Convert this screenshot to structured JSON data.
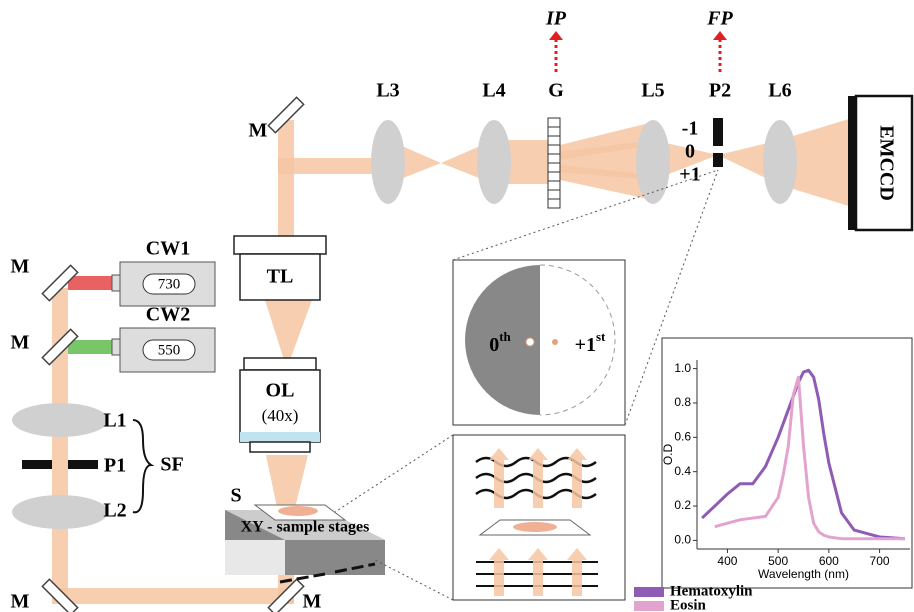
{
  "labels": {
    "ip": "IP",
    "fp": "FP",
    "l3": "L3",
    "l4": "L4",
    "g": "G",
    "l5": "L5",
    "p2": "P2",
    "l6": "L6",
    "emccd": "EMCCD",
    "minus1": "-1",
    "zero": "0",
    "plus1": "+1",
    "cw1": "CW1",
    "cw1_wl": "730",
    "cw2": "CW2",
    "cw2_wl": "550",
    "tl": "TL",
    "ol": "OL",
    "ol_mag": "(40x)",
    "s": "S",
    "stage": "XY - sample stages",
    "l1": "L1",
    "p1": "P1",
    "l2": "L2",
    "sf": "SF",
    "order0": {
      "base": "0",
      "sup": "th"
    },
    "order1": {
      "base": "+1",
      "sup": "st"
    },
    "mirrors": [
      "M",
      "M",
      "M",
      "M",
      "M"
    ]
  },
  "chart_data": {
    "type": "line",
    "x_label": "Wavelength (nm)",
    "y_label": "O.D",
    "x": [
      350,
      375,
      400,
      425,
      450,
      475,
      500,
      510,
      520,
      530,
      540,
      550,
      560,
      570,
      580,
      590,
      600,
      625,
      650,
      700,
      750
    ],
    "series": [
      {
        "name": "Hematoxylin",
        "color": "#8e5bb5",
        "values": [
          0.13,
          0.2,
          0.27,
          0.33,
          0.33,
          0.43,
          0.6,
          0.68,
          0.76,
          0.84,
          0.92,
          0.98,
          0.99,
          0.95,
          0.82,
          0.62,
          0.45,
          0.16,
          0.06,
          0.02,
          0.01
        ]
      },
      {
        "name": "Eosin",
        "color": "#e3a3cf",
        "values": [
          null,
          0.08,
          0.1,
          0.12,
          0.13,
          0.14,
          0.25,
          0.38,
          0.55,
          0.85,
          0.95,
          0.55,
          0.25,
          0.1,
          0.05,
          0.03,
          0.02,
          0.01,
          0.01,
          0.01,
          0.01
        ]
      }
    ],
    "xlim": [
      340,
      760
    ],
    "ylim": [
      -0.05,
      1.05
    ],
    "xticks": [
      400,
      500,
      600,
      700
    ],
    "yticks": [
      {
        "value": 0,
        "label": "0.0"
      },
      {
        "value": 0.2,
        "label": "0.2"
      },
      {
        "value": 0.4,
        "label": "0.4"
      },
      {
        "value": 0.6,
        "label": "0.6"
      },
      {
        "value": 0.8,
        "label": "0.8"
      },
      {
        "value": 1,
        "label": "1.0"
      }
    ]
  }
}
